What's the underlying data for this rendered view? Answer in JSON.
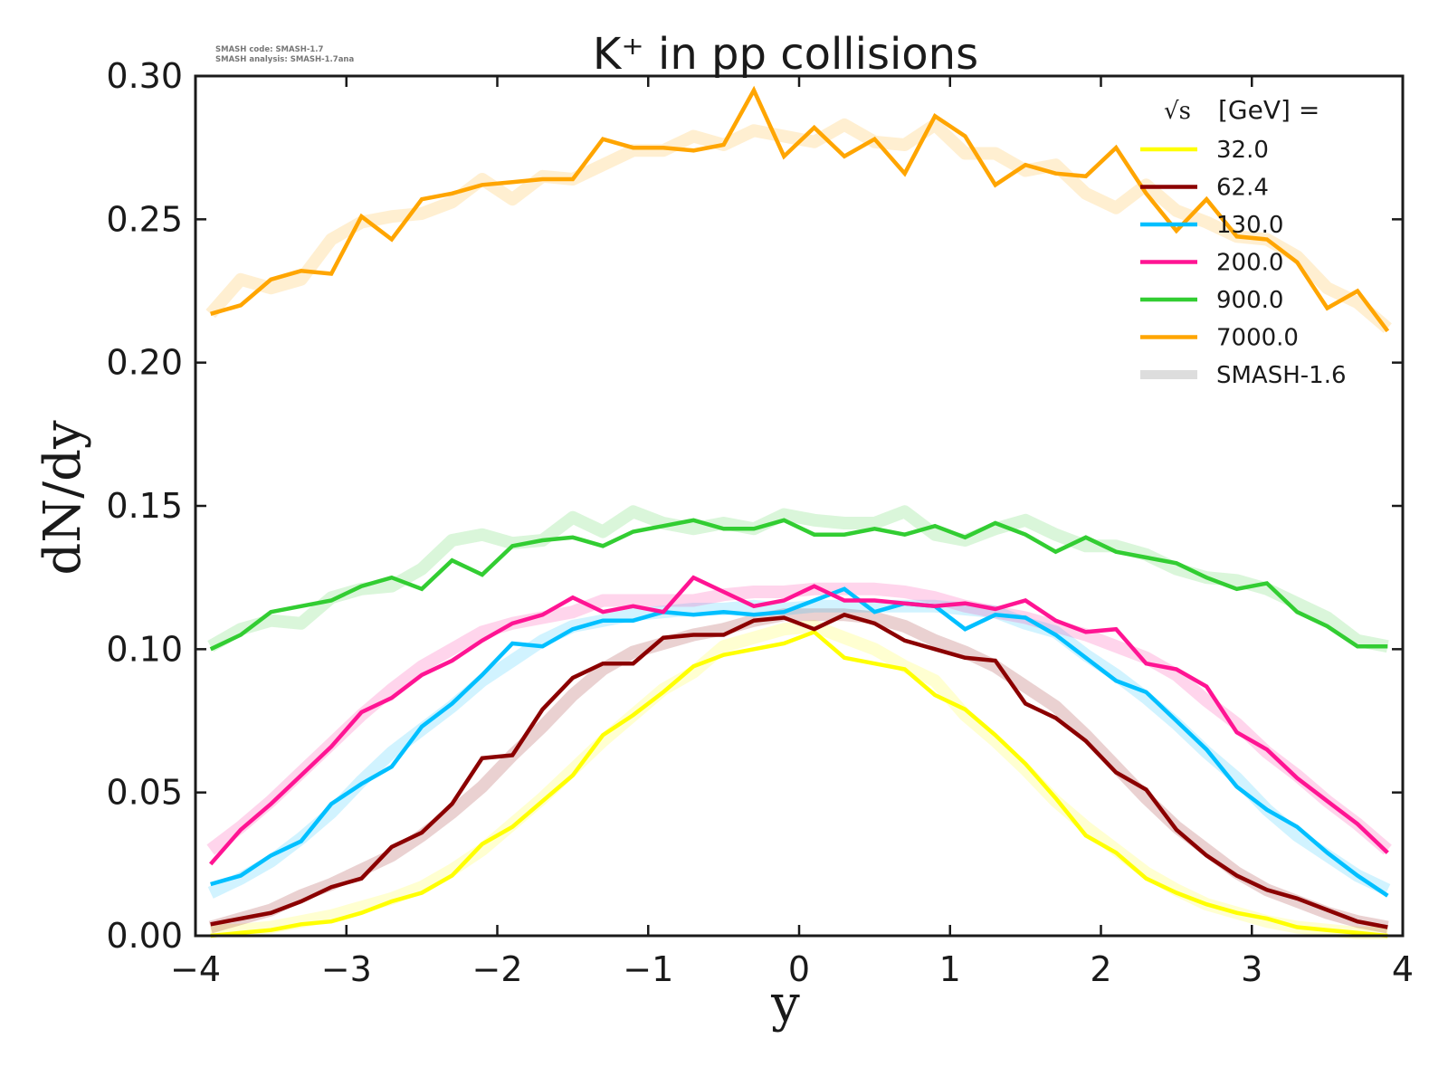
{
  "chart_data": {
    "type": "line",
    "title": "K⁺ in pp collisions",
    "xlabel": "y",
    "ylabel": "dN/dy",
    "xlim": [
      -4,
      4
    ],
    "ylim": [
      0.0,
      0.3
    ],
    "xticks": [
      -4,
      -3,
      -2,
      -1,
      0,
      1,
      2,
      3,
      4
    ],
    "xtick_labels": [
      "−4",
      "−3",
      "−2",
      "−1",
      "0",
      "1",
      "2",
      "3",
      "4"
    ],
    "yticks": [
      0.0,
      0.05,
      0.1,
      0.15,
      0.2,
      0.25,
      0.3
    ],
    "ytick_labels": [
      "0.00",
      "0.05",
      "0.10",
      "0.15",
      "0.20",
      "0.25",
      "0.30"
    ],
    "grid": false,
    "legend_position": "top-right",
    "legend_title_sqrt": "√s",
    "legend_title": "[GeV] =",
    "annotations": [
      "SMASH code:      SMASH-1.7",
      "SMASH analysis: SMASH-1.7ana"
    ],
    "x": [
      -3.9,
      -3.7,
      -3.5,
      -3.3,
      -3.1,
      -2.9,
      -2.7,
      -2.5,
      -2.3,
      -2.1,
      -1.9,
      -1.7,
      -1.5,
      -1.3,
      -1.1,
      -0.9,
      -0.7,
      -0.5,
      -0.3,
      -0.1,
      0.1,
      0.3,
      0.5,
      0.7,
      0.9,
      1.1,
      1.3,
      1.5,
      1.7,
      1.9,
      2.1,
      2.3,
      2.5,
      2.7,
      2.9,
      3.1,
      3.3,
      3.5,
      3.7,
      3.9
    ],
    "series": [
      {
        "name": "32.0",
        "color": "#ffff00",
        "values": [
          0.0,
          0.001,
          0.002,
          0.004,
          0.005,
          0.008,
          0.012,
          0.015,
          0.021,
          0.032,
          0.038,
          0.047,
          0.056,
          0.07,
          0.077,
          0.085,
          0.094,
          0.098,
          0.1,
          0.102,
          0.106,
          0.097,
          0.095,
          0.093,
          0.084,
          0.079,
          0.07,
          0.06,
          0.048,
          0.035,
          0.029,
          0.02,
          0.015,
          0.011,
          0.008,
          0.006,
          0.003,
          0.002,
          0.001,
          0.0
        ]
      },
      {
        "name": "62.4",
        "color": "#8b0000",
        "values": [
          0.004,
          0.006,
          0.008,
          0.012,
          0.017,
          0.02,
          0.031,
          0.036,
          0.046,
          0.062,
          0.063,
          0.079,
          0.09,
          0.095,
          0.095,
          0.104,
          0.105,
          0.105,
          0.11,
          0.111,
          0.107,
          0.112,
          0.109,
          0.103,
          0.1,
          0.097,
          0.096,
          0.081,
          0.076,
          0.068,
          0.057,
          0.051,
          0.037,
          0.028,
          0.021,
          0.016,
          0.013,
          0.009,
          0.005,
          0.003
        ]
      },
      {
        "name": "130.0",
        "color": "#00bfff",
        "values": [
          0.018,
          0.021,
          0.028,
          0.033,
          0.046,
          0.053,
          0.059,
          0.073,
          0.081,
          0.091,
          0.102,
          0.101,
          0.107,
          0.11,
          0.11,
          0.113,
          0.112,
          0.113,
          0.112,
          0.113,
          0.117,
          0.121,
          0.113,
          0.116,
          0.115,
          0.107,
          0.112,
          0.111,
          0.105,
          0.097,
          0.089,
          0.085,
          0.075,
          0.065,
          0.052,
          0.044,
          0.038,
          0.029,
          0.021,
          0.014
        ]
      },
      {
        "name": "200.0",
        "color": "#ff1493",
        "values": [
          0.025,
          0.037,
          0.046,
          0.056,
          0.066,
          0.078,
          0.083,
          0.091,
          0.096,
          0.103,
          0.109,
          0.112,
          0.118,
          0.113,
          0.115,
          0.113,
          0.125,
          0.12,
          0.115,
          0.117,
          0.122,
          0.117,
          0.117,
          0.116,
          0.115,
          0.116,
          0.114,
          0.117,
          0.11,
          0.106,
          0.107,
          0.095,
          0.093,
          0.087,
          0.071,
          0.065,
          0.055,
          0.047,
          0.039,
          0.029
        ]
      },
      {
        "name": "900.0",
        "color": "#32cd32",
        "values": [
          0.1,
          0.105,
          0.113,
          0.115,
          0.117,
          0.122,
          0.125,
          0.121,
          0.131,
          0.126,
          0.136,
          0.138,
          0.139,
          0.136,
          0.141,
          0.143,
          0.145,
          0.142,
          0.142,
          0.145,
          0.14,
          0.14,
          0.142,
          0.14,
          0.143,
          0.139,
          0.144,
          0.14,
          0.134,
          0.139,
          0.134,
          0.132,
          0.13,
          0.125,
          0.121,
          0.123,
          0.113,
          0.108,
          0.101,
          0.101
        ]
      },
      {
        "name": "7000.0",
        "color": "#ffa500",
        "values": [
          0.217,
          0.22,
          0.229,
          0.232,
          0.231,
          0.251,
          0.243,
          0.257,
          0.259,
          0.262,
          0.263,
          0.264,
          0.264,
          0.278,
          0.275,
          0.275,
          0.274,
          0.276,
          0.295,
          0.272,
          0.282,
          0.272,
          0.278,
          0.266,
          0.286,
          0.279,
          0.262,
          0.269,
          0.266,
          0.265,
          0.275,
          0.259,
          0.246,
          0.257,
          0.244,
          0.243,
          0.235,
          0.219,
          0.225,
          0.211
        ]
      }
    ],
    "reference_series": {
      "name": "SMASH-1.6",
      "legend_color": "#dddddd",
      "opacity": 0.18,
      "values": {
        "32.0": [
          0.002,
          0.002,
          0.003,
          0.005,
          0.007,
          0.01,
          0.013,
          0.017,
          0.023,
          0.03,
          0.039,
          0.048,
          0.058,
          0.068,
          0.077,
          0.086,
          0.092,
          0.101,
          0.104,
          0.107,
          0.108,
          0.104,
          0.1,
          0.094,
          0.089,
          0.077,
          0.068,
          0.058,
          0.047,
          0.038,
          0.03,
          0.022,
          0.016,
          0.011,
          0.008,
          0.005,
          0.003,
          0.002,
          0.001,
          0.001
        ],
        "62.4": [
          0.003,
          0.006,
          0.009,
          0.014,
          0.018,
          0.023,
          0.028,
          0.035,
          0.043,
          0.052,
          0.063,
          0.073,
          0.084,
          0.093,
          0.099,
          0.102,
          0.105,
          0.107,
          0.11,
          0.112,
          0.112,
          0.112,
          0.111,
          0.108,
          0.103,
          0.099,
          0.094,
          0.087,
          0.08,
          0.07,
          0.059,
          0.048,
          0.038,
          0.03,
          0.022,
          0.016,
          0.012,
          0.008,
          0.005,
          0.003
        ],
        "130.0": [
          0.015,
          0.02,
          0.026,
          0.034,
          0.043,
          0.054,
          0.064,
          0.072,
          0.08,
          0.089,
          0.096,
          0.103,
          0.108,
          0.11,
          0.112,
          0.113,
          0.114,
          0.114,
          0.115,
          0.114,
          0.115,
          0.115,
          0.115,
          0.115,
          0.115,
          0.114,
          0.113,
          0.109,
          0.106,
          0.098,
          0.091,
          0.083,
          0.074,
          0.064,
          0.055,
          0.044,
          0.035,
          0.028,
          0.021,
          0.016
        ],
        "200.0": [
          0.03,
          0.038,
          0.047,
          0.057,
          0.067,
          0.077,
          0.086,
          0.094,
          0.1,
          0.106,
          0.109,
          0.111,
          0.113,
          0.117,
          0.117,
          0.117,
          0.117,
          0.119,
          0.12,
          0.12,
          0.121,
          0.121,
          0.121,
          0.12,
          0.118,
          0.115,
          0.113,
          0.111,
          0.108,
          0.105,
          0.101,
          0.097,
          0.091,
          0.082,
          0.074,
          0.064,
          0.056,
          0.047,
          0.039,
          0.03
        ],
        "900.0": [
          0.101,
          0.107,
          0.11,
          0.109,
          0.118,
          0.121,
          0.122,
          0.128,
          0.138,
          0.14,
          0.137,
          0.138,
          0.146,
          0.141,
          0.148,
          0.144,
          0.142,
          0.144,
          0.142,
          0.147,
          0.145,
          0.144,
          0.144,
          0.148,
          0.14,
          0.138,
          0.142,
          0.145,
          0.14,
          0.136,
          0.136,
          0.133,
          0.128,
          0.125,
          0.124,
          0.121,
          0.116,
          0.111,
          0.103,
          0.101
        ],
        "7000.0": [
          0.217,
          0.229,
          0.226,
          0.229,
          0.243,
          0.249,
          0.251,
          0.252,
          0.256,
          0.264,
          0.257,
          0.265,
          0.264,
          0.269,
          0.274,
          0.274,
          0.279,
          0.276,
          0.281,
          0.279,
          0.277,
          0.283,
          0.277,
          0.276,
          0.283,
          0.273,
          0.273,
          0.267,
          0.269,
          0.259,
          0.254,
          0.262,
          0.253,
          0.249,
          0.244,
          0.243,
          0.237,
          0.226,
          0.221,
          0.212
        ]
      }
    }
  }
}
